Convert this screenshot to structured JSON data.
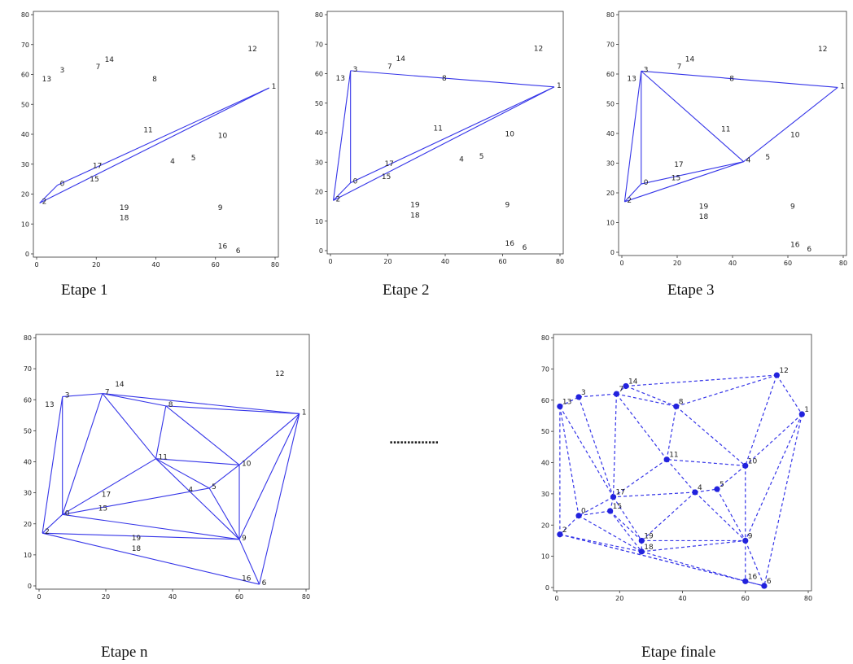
{
  "points": [
    {
      "id": "1",
      "x": 78,
      "y": 55.5
    },
    {
      "id": "2",
      "x": 1,
      "y": 17
    },
    {
      "id": "3",
      "x": 7,
      "y": 61
    },
    {
      "id": "4",
      "x": 44,
      "y": 30.5
    },
    {
      "id": "5",
      "x": 51,
      "y": 31.5
    },
    {
      "id": "6",
      "x": 66,
      "y": 0.5
    },
    {
      "id": "7",
      "x": 19,
      "y": 62
    },
    {
      "id": "8",
      "x": 38,
      "y": 58
    },
    {
      "id": "9",
      "x": 60,
      "y": 15
    },
    {
      "id": "10",
      "x": 60,
      "y": 39
    },
    {
      "id": "11",
      "x": 35,
      "y": 41
    },
    {
      "id": "12",
      "x": 70,
      "y": 68
    },
    {
      "id": "13",
      "x": 1,
      "y": 58
    },
    {
      "id": "14",
      "x": 22,
      "y": 64.5
    },
    {
      "id": "15",
      "x": 17,
      "y": 24.5
    },
    {
      "id": "16",
      "x": 60,
      "y": 2
    },
    {
      "id": "17",
      "x": 18,
      "y": 29
    },
    {
      "id": "18",
      "x": 27,
      "y": 11.5
    },
    {
      "id": "19",
      "x": 27,
      "y": 15
    },
    {
      "id": "0",
      "x": 7,
      "y": 23
    }
  ],
  "axis": {
    "xlim": [
      0,
      80
    ],
    "ylim": [
      0,
      80
    ],
    "xticks": [
      "0",
      "20",
      "40",
      "60",
      "80"
    ],
    "yticks": [
      "0",
      "10",
      "20",
      "30",
      "40",
      "50",
      "60",
      "70",
      "80"
    ]
  },
  "panels": [
    {
      "caption": "Etape 1",
      "style": "solid",
      "edges": [
        [
          "2",
          "1"
        ],
        [
          "2",
          "0"
        ],
        [
          "0",
          "1"
        ]
      ]
    },
    {
      "caption": "Etape 2",
      "style": "solid",
      "edges": [
        [
          "2",
          "1"
        ],
        [
          "2",
          "3"
        ],
        [
          "3",
          "1"
        ],
        [
          "2",
          "0"
        ],
        [
          "0",
          "1"
        ],
        [
          "0",
          "3"
        ]
      ]
    },
    {
      "caption": "Etape 3",
      "style": "solid",
      "edges": [
        [
          "2",
          "3"
        ],
        [
          "3",
          "1"
        ],
        [
          "2",
          "4"
        ],
        [
          "1",
          "4"
        ],
        [
          "3",
          "4"
        ],
        [
          "2",
          "0"
        ],
        [
          "0",
          "4"
        ],
        [
          "0",
          "3"
        ]
      ]
    },
    {
      "caption": "Etape n",
      "style": "solid",
      "edges": [
        [
          "2",
          "3"
        ],
        [
          "3",
          "7"
        ],
        [
          "7",
          "1"
        ],
        [
          "1",
          "6"
        ],
        [
          "6",
          "2"
        ],
        [
          "2",
          "0"
        ],
        [
          "0",
          "3"
        ],
        [
          "0",
          "7"
        ],
        [
          "7",
          "11"
        ],
        [
          "11",
          "0"
        ],
        [
          "7",
          "8"
        ],
        [
          "8",
          "1"
        ],
        [
          "8",
          "11"
        ],
        [
          "8",
          "10"
        ],
        [
          "10",
          "1"
        ],
        [
          "11",
          "10"
        ],
        [
          "11",
          "5"
        ],
        [
          "5",
          "0"
        ],
        [
          "5",
          "10"
        ],
        [
          "11",
          "9"
        ],
        [
          "5",
          "9"
        ],
        [
          "10",
          "9"
        ],
        [
          "1",
          "9"
        ],
        [
          "9",
          "6"
        ],
        [
          "0",
          "9"
        ],
        [
          "2",
          "9"
        ]
      ]
    },
    {
      "caption": "Etape finale",
      "style": "dashed",
      "edges": [
        [
          "13",
          "3"
        ],
        [
          "13",
          "2"
        ],
        [
          "13",
          "0"
        ],
        [
          "13",
          "17"
        ],
        [
          "3",
          "7"
        ],
        [
          "3",
          "17"
        ],
        [
          "7",
          "14"
        ],
        [
          "14",
          "8"
        ],
        [
          "14",
          "12"
        ],
        [
          "7",
          "8"
        ],
        [
          "7",
          "17"
        ],
        [
          "7",
          "11"
        ],
        [
          "8",
          "11"
        ],
        [
          "8",
          "10"
        ],
        [
          "8",
          "12"
        ],
        [
          "12",
          "1"
        ],
        [
          "12",
          "10"
        ],
        [
          "1",
          "10"
        ],
        [
          "1",
          "9"
        ],
        [
          "1",
          "6"
        ],
        [
          "10",
          "11"
        ],
        [
          "10",
          "5"
        ],
        [
          "10",
          "9"
        ],
        [
          "11",
          "17"
        ],
        [
          "11",
          "4"
        ],
        [
          "4",
          "17"
        ],
        [
          "4",
          "5"
        ],
        [
          "4",
          "9"
        ],
        [
          "4",
          "19"
        ],
        [
          "5",
          "9"
        ],
        [
          "17",
          "0"
        ],
        [
          "17",
          "15"
        ],
        [
          "17",
          "19"
        ],
        [
          "0",
          "15"
        ],
        [
          "0",
          "2"
        ],
        [
          "0",
          "18"
        ],
        [
          "15",
          "19"
        ],
        [
          "15",
          "18"
        ],
        [
          "19",
          "9"
        ],
        [
          "19",
          "18"
        ],
        [
          "18",
          "9"
        ],
        [
          "18",
          "16"
        ],
        [
          "2",
          "18"
        ],
        [
          "2",
          "16"
        ],
        [
          "9",
          "16"
        ],
        [
          "9",
          "6"
        ],
        [
          "16",
          "6"
        ],
        [
          "2",
          "6"
        ]
      ]
    }
  ],
  "separator": "..............",
  "colors": {
    "edge": "#3535e8",
    "node": "#2222dd"
  }
}
